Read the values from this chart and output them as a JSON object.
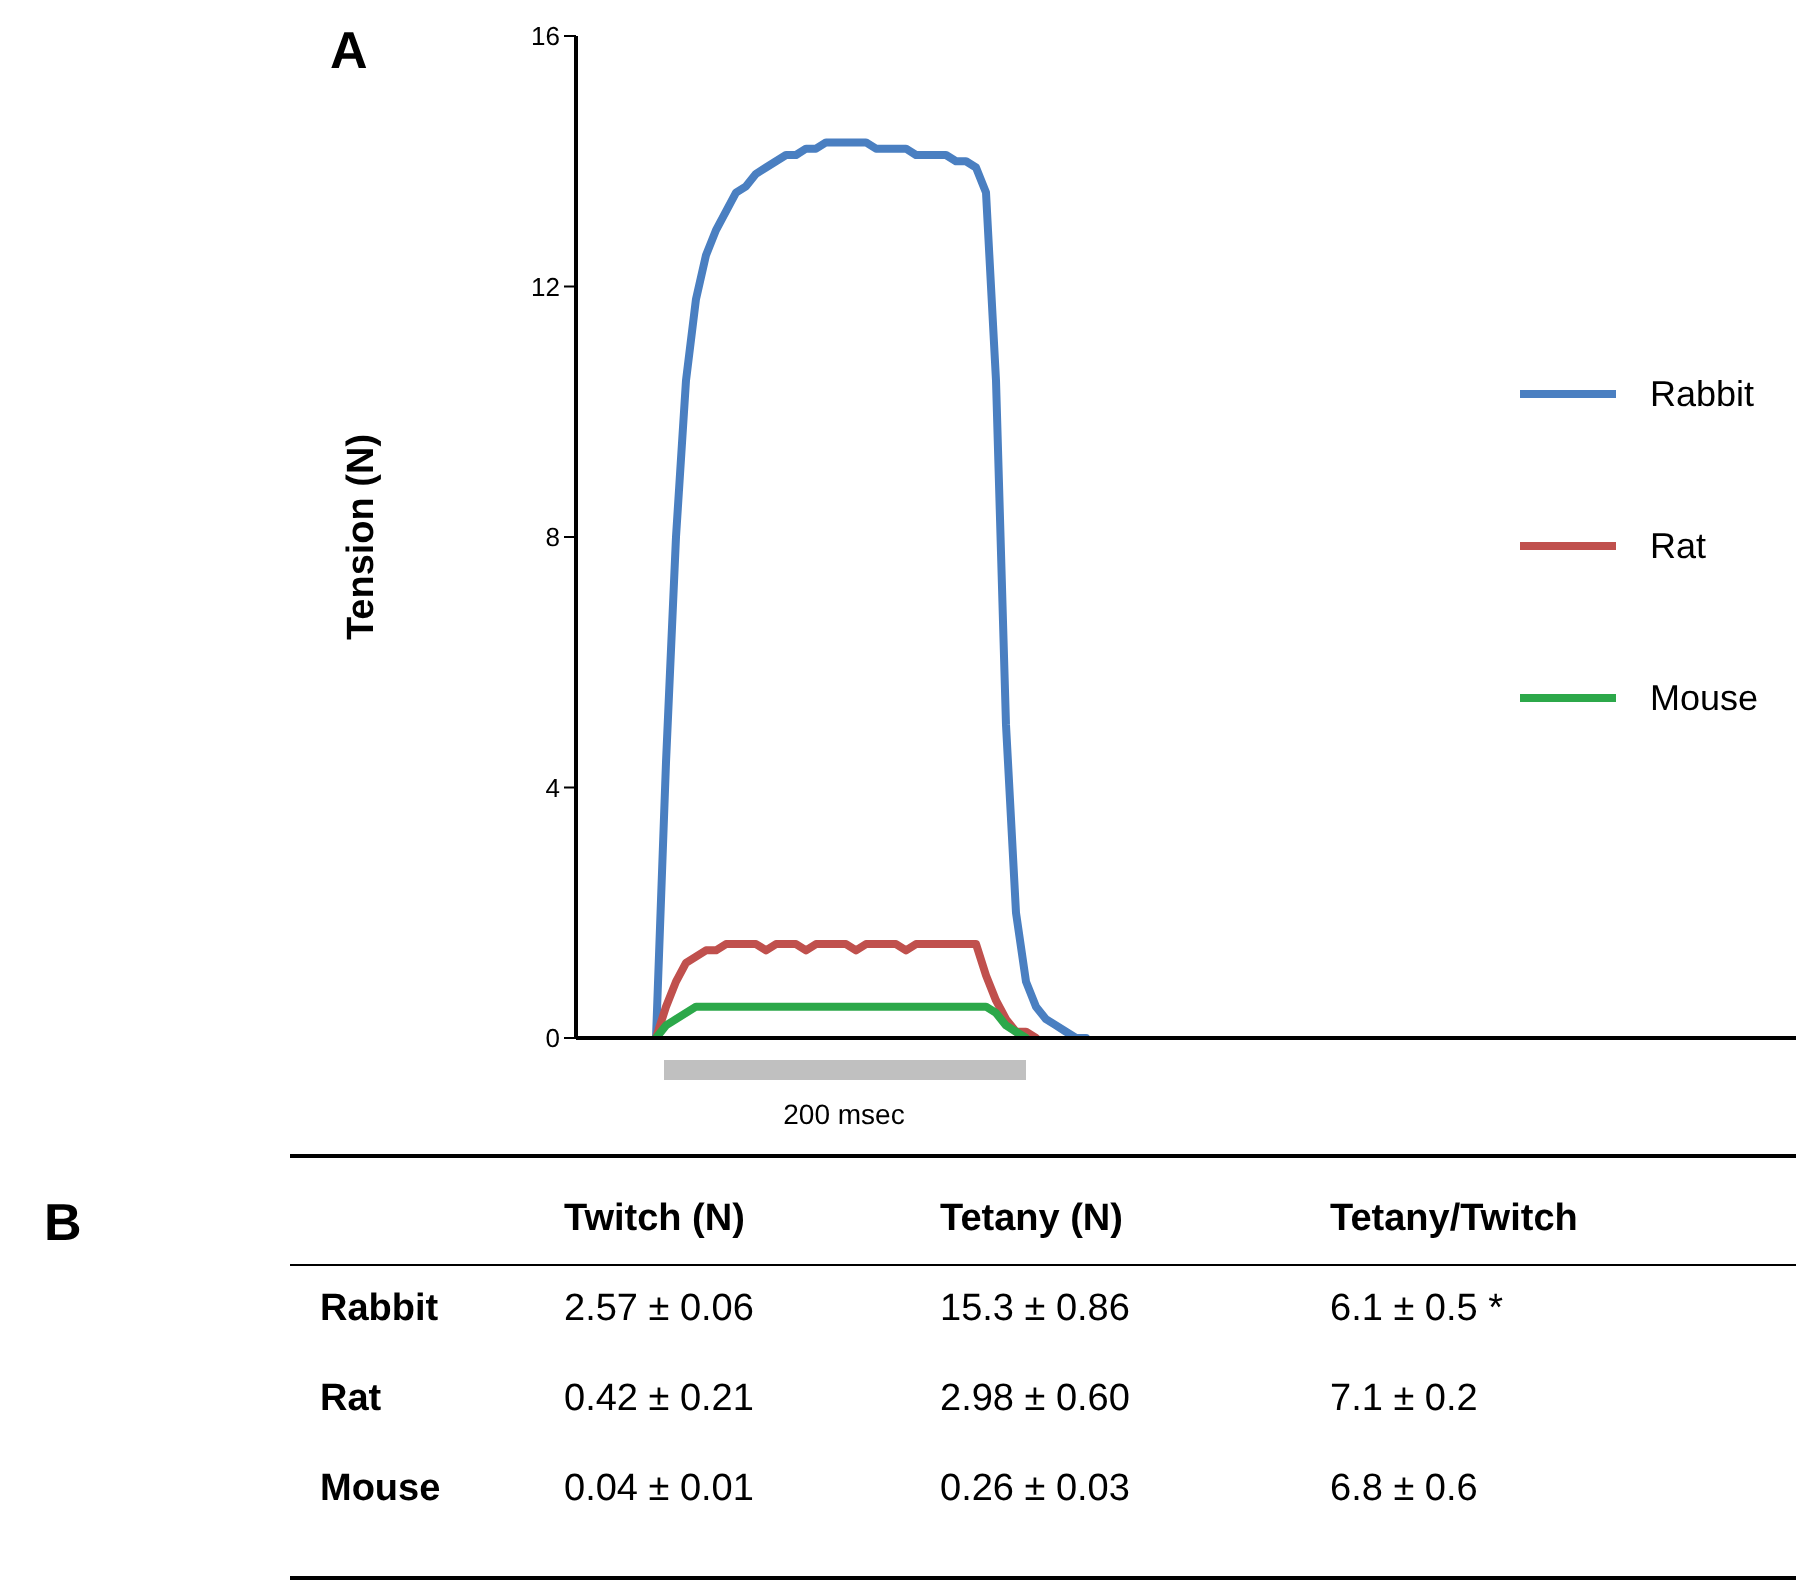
{
  "chart_data": [
    {
      "type": "line",
      "title": "A",
      "ylabel": "Tension (N)",
      "ylim": [
        0,
        16
      ],
      "yticks": [
        0,
        4,
        8,
        12,
        16
      ],
      "tick_labels": "y",
      "legend": "right",
      "annotations": [
        "200 msec"
      ],
      "categories": [
        null,
        null,
        null,
        null,
        null,
        null,
        null,
        null,
        null,
        null,
        null,
        null,
        null,
        null,
        null,
        null,
        null,
        null,
        null,
        null,
        null,
        null,
        null,
        null,
        null,
        null,
        null,
        null,
        null,
        null,
        null,
        null,
        null,
        null,
        null,
        null,
        null,
        null,
        null,
        null,
        null,
        null,
        null,
        null,
        null,
        null,
        null,
        null,
        null,
        null,
        null,
        null,
        null,
        null,
        null,
        null,
        null,
        null,
        null,
        null,
        null,
        null,
        null,
        null,
        null,
        null,
        null,
        null,
        null,
        null,
        null,
        null,
        null,
        null,
        null,
        null,
        null,
        null,
        null,
        null,
        null,
        null,
        null,
        null,
        null,
        null,
        null,
        null,
        null,
        null,
        null,
        null,
        null,
        null,
        null,
        null,
        null,
        null,
        null,
        null,
        null,
        null,
        null,
        null,
        null,
        null,
        null,
        null,
        null,
        null,
        null,
        null,
        null,
        null,
        null,
        null,
        null,
        null,
        null,
        null,
        null,
        null,
        null
      ],
      "series": [
        {
          "name": "Rabbit",
          "color": "#4a7fc1",
          "values": [
            null,
            null,
            null,
            null,
            null,
            null,
            null,
            null,
            0,
            4.4,
            8.0,
            10.5,
            11.8,
            12.5,
            12.9,
            13.2,
            13.5,
            13.6,
            13.8,
            13.9,
            14.0,
            14.1,
            14.1,
            14.2,
            14.2,
            14.3,
            14.3,
            14.3,
            14.3,
            14.3,
            14.2,
            14.2,
            14.2,
            14.2,
            14.1,
            14.1,
            14.1,
            14.1,
            14.0,
            14.0,
            13.9,
            13.5,
            10.5,
            5.0,
            2.0,
            0.9,
            0.5,
            0.3,
            0.2,
            0.1,
            0.0,
            0,
            null,
            null,
            null,
            null,
            null,
            null,
            null,
            null,
            null,
            null,
            null,
            null,
            null,
            null,
            null,
            null,
            null,
            null,
            null,
            null,
            null,
            null,
            null,
            null,
            null,
            null,
            null,
            null,
            null,
            null,
            null,
            null,
            null,
            null,
            null,
            null,
            null,
            null,
            null,
            null,
            null,
            null,
            null,
            null,
            null,
            null,
            null,
            null,
            null,
            null,
            null,
            null,
            null,
            null,
            null,
            null,
            null,
            null,
            null,
            null,
            null,
            null,
            null,
            null,
            null,
            null,
            null,
            null,
            null,
            null,
            null
          ]
        },
        {
          "name": "Rat",
          "color": "#c0504d",
          "values": [
            null,
            null,
            null,
            null,
            null,
            null,
            null,
            null,
            0,
            0.5,
            0.9,
            1.2,
            1.3,
            1.4,
            1.4,
            1.5,
            1.5,
            1.5,
            1.5,
            1.4,
            1.5,
            1.5,
            1.5,
            1.4,
            1.5,
            1.5,
            1.5,
            1.5,
            1.4,
            1.5,
            1.5,
            1.5,
            1.5,
            1.4,
            1.5,
            1.5,
            1.5,
            1.5,
            1.5,
            1.5,
            1.5,
            1.0,
            0.6,
            0.3,
            0.1,
            0.1,
            0,
            null,
            null,
            null,
            null,
            null,
            null,
            null,
            null,
            null,
            null,
            null,
            null,
            null,
            null,
            null,
            null,
            null,
            null,
            null,
            null,
            null,
            null,
            null,
            null,
            null,
            null,
            null,
            null,
            null,
            null,
            null,
            null,
            null,
            null,
            null,
            null,
            null,
            null,
            null,
            null,
            null,
            null,
            null,
            null,
            null,
            null,
            null,
            null,
            null,
            null,
            null,
            null,
            null,
            null,
            null,
            null,
            null,
            null,
            null,
            null,
            null,
            null,
            null,
            null,
            null,
            null,
            null,
            null,
            null,
            null,
            null,
            null,
            null,
            null,
            null,
            null
          ]
        },
        {
          "name": "Mouse",
          "color": "#2ca84a",
          "values": [
            null,
            null,
            null,
            null,
            null,
            null,
            null,
            null,
            0,
            0.2,
            0.3,
            0.4,
            0.5,
            0.5,
            0.5,
            0.5,
            0.5,
            0.5,
            0.5,
            0.5,
            0.5,
            0.5,
            0.5,
            0.5,
            0.5,
            0.5,
            0.5,
            0.5,
            0.5,
            0.5,
            0.5,
            0.5,
            0.5,
            0.5,
            0.5,
            0.5,
            0.5,
            0.5,
            0.5,
            0.5,
            0.5,
            0.5,
            0.4,
            0.2,
            0.1,
            0,
            null,
            null,
            null,
            null,
            null,
            null,
            null,
            null,
            null,
            null,
            null,
            null,
            null,
            null,
            null,
            null,
            null,
            null,
            null,
            null,
            null,
            null,
            null,
            null,
            null,
            null,
            null,
            null,
            null,
            null,
            null,
            null,
            null,
            null,
            null,
            null,
            null,
            null,
            null,
            null,
            null,
            null,
            null,
            null,
            null,
            null,
            null,
            null,
            null,
            null,
            null,
            null,
            null,
            null,
            null,
            null,
            null,
            null,
            null,
            null,
            null,
            null,
            null,
            null,
            null,
            null,
            null,
            null,
            null,
            null,
            null,
            null,
            null,
            null,
            null,
            null,
            null
          ]
        }
      ]
    },
    {
      "type": "other",
      "title": "B",
      "categories": [
        "Twitch (N)",
        "Tetany (N)",
        "Tetany/Twitch"
      ],
      "y_categories": [
        "Rabbit",
        "Rat",
        "Mouse"
      ],
      "cell_labels": [
        [
          "2.57 ± 0.06",
          "15.3 ± 0.86",
          "6.1 ± 0.5 *"
        ],
        [
          "0.42 ± 0.21",
          "2.98 ± 0.60",
          "7.1 ± 0.2"
        ],
        [
          "0.04 ± 0.01",
          "0.26 ± 0.03",
          "6.8 ± 0.6"
        ]
      ]
    }
  ]
}
